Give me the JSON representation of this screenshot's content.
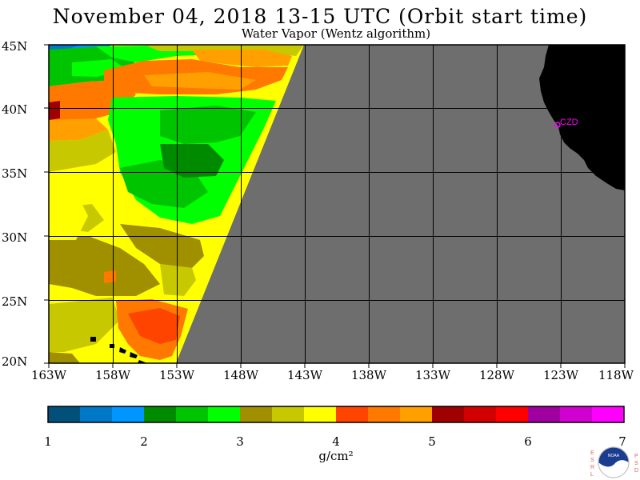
{
  "header": {
    "title": "November 04, 2018  13-15 UTC  (Orbit start time)",
    "subtitle": "Water Vapor (Wentz algorithm)"
  },
  "map": {
    "lat_labels": [
      "45N",
      "40N",
      "35N",
      "30N",
      "25N",
      "20N"
    ],
    "lon_labels": [
      "163W",
      "158W",
      "153W",
      "148W",
      "143W",
      "138W",
      "133W",
      "128W",
      "123W",
      "118W"
    ],
    "station_label": "CZD",
    "colors": {
      "no_data": "#6e6e6e",
      "land": "#000000",
      "grid": "#000000",
      "station": "#ff00ff"
    }
  },
  "colorbar": {
    "tick_labels": [
      "1",
      "2",
      "3",
      "4",
      "5",
      "6",
      "7"
    ],
    "unit_label": "g/cm²",
    "colors": [
      "#00507a",
      "#0078c8",
      "#0096ff",
      "#008a00",
      "#00c400",
      "#00ff00",
      "#a09000",
      "#c8c800",
      "#ffff00",
      "#ff4400",
      "#ff7800",
      "#ffa000",
      "#a00000",
      "#d20000",
      "#ff0000",
      "#a000a0",
      "#d000d0",
      "#ff00ff"
    ]
  },
  "logo": {
    "left_letters": "ESRL",
    "right_letters": "PSD",
    "text": "NOAA"
  }
}
